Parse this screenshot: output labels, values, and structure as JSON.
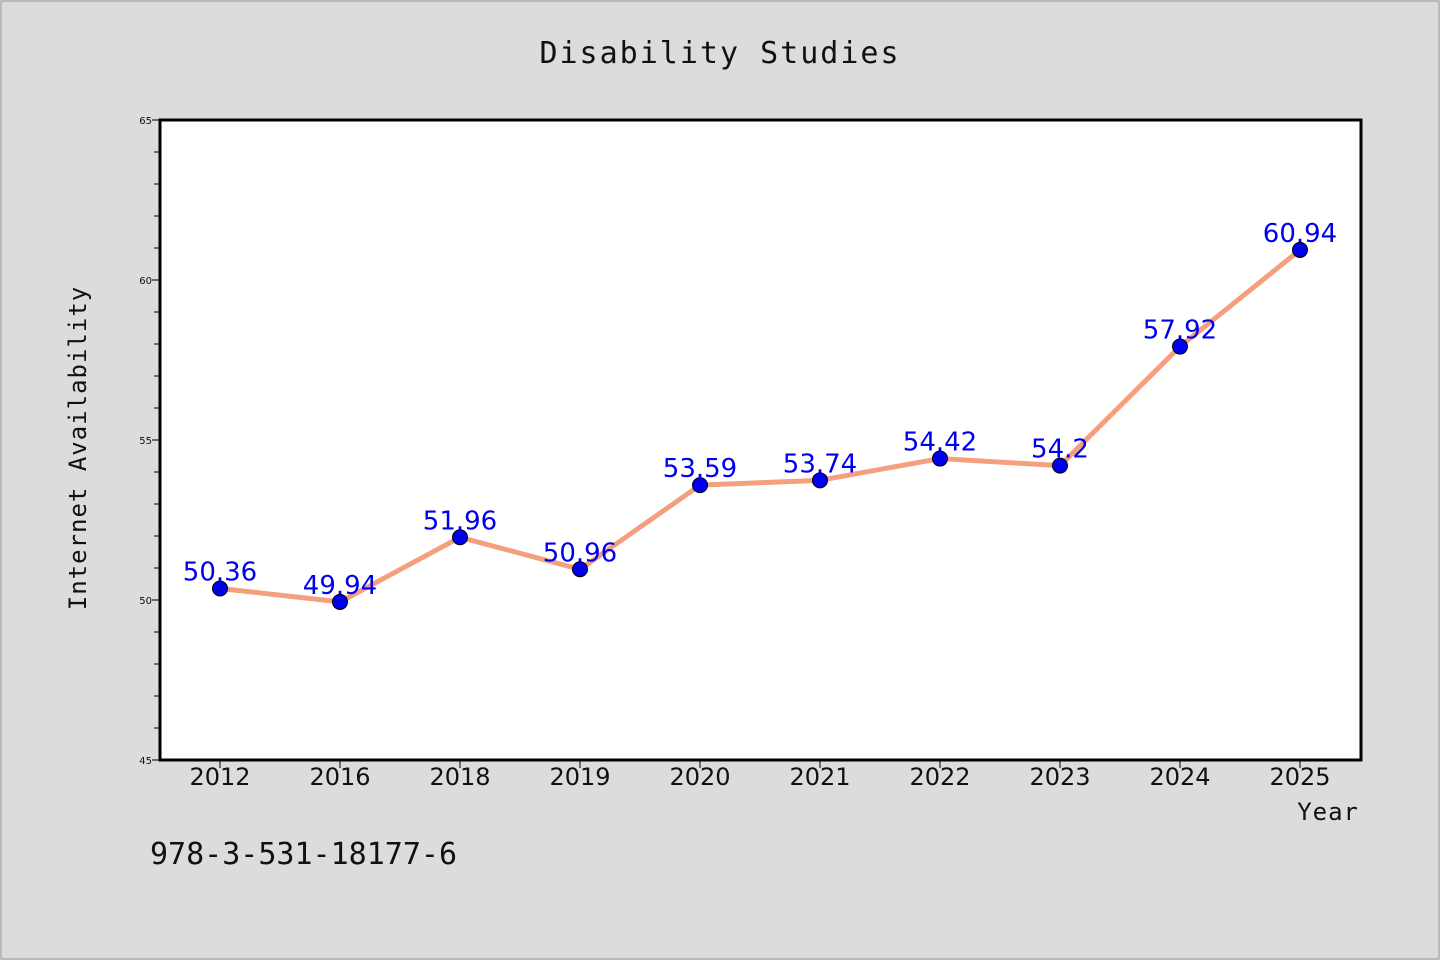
{
  "chart_data": {
    "type": "line",
    "title": "Disability Studies",
    "xlabel": "Year",
    "ylabel": "Internet Availability",
    "categories": [
      "2012",
      "2016",
      "2018",
      "2019",
      "2020",
      "2021",
      "2022",
      "2023",
      "2024",
      "2025"
    ],
    "values": [
      50.36,
      49.94,
      51.96,
      50.96,
      53.59,
      53.74,
      54.42,
      54.2,
      57.92,
      60.94
    ],
    "data_labels": [
      "50.36",
      "49.94",
      "51.96",
      "50.96",
      "53.59",
      "53.74",
      "54.42",
      "54.2",
      "57.92",
      "60.94"
    ],
    "ylim": [
      45,
      65
    ],
    "yticks": [
      45,
      50,
      55,
      60,
      65
    ],
    "yticks_minor_step": 1,
    "grid": false,
    "legend": "none",
    "line_color": "#f4a07e",
    "marker_color": "#0000ee",
    "label_color": "#0000ee"
  },
  "footer_text": "978-3-531-18177-6"
}
